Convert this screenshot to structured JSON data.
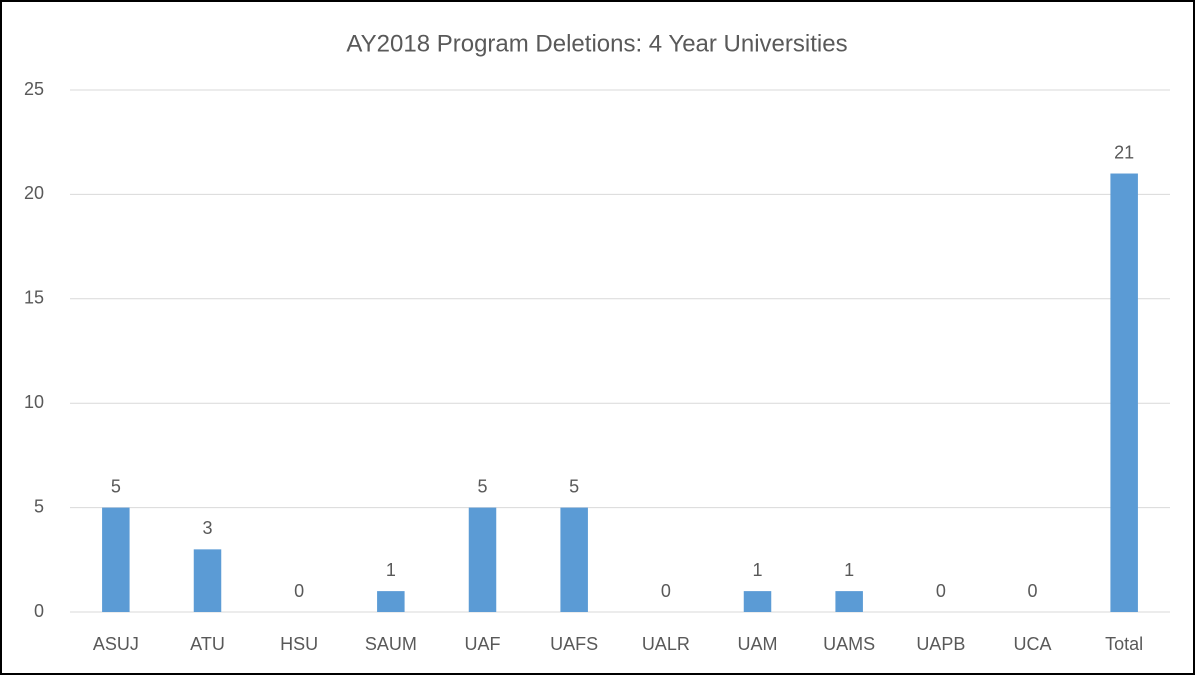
{
  "chart_data": {
    "type": "bar",
    "title": "AY2018 Program Deletions: 4 Year Universities",
    "categories": [
      "ASUJ",
      "ATU",
      "HSU",
      "SAUM",
      "UAF",
      "UAFS",
      "UALR",
      "UAM",
      "UAMS",
      "UAPB",
      "UCA",
      "Total"
    ],
    "values": [
      5,
      3,
      0,
      1,
      5,
      5,
      0,
      1,
      1,
      0,
      0,
      21
    ],
    "color": "#5b9bd5",
    "ylim": [
      0,
      25
    ],
    "yticks": [
      0,
      5,
      10,
      15,
      20,
      25
    ],
    "grid": true,
    "data_labels": true
  }
}
